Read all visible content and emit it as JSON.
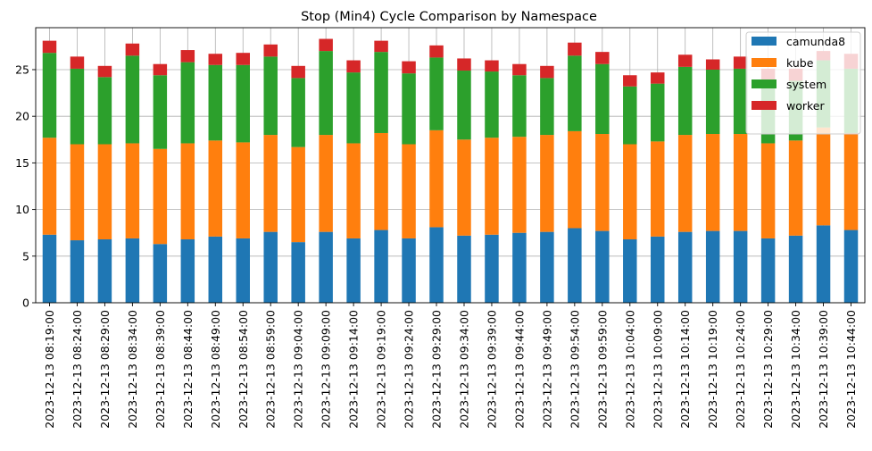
{
  "chart_data": {
    "type": "bar",
    "stacked": true,
    "title": "Stop (Min4) Cycle Comparison by Namespace",
    "xlabel": "",
    "ylabel": "",
    "ylim": [
      0,
      29.5
    ],
    "yticks": [
      0,
      5,
      10,
      15,
      20,
      25
    ],
    "grid": true,
    "legend_position": "top-right",
    "categories": [
      "2023-12-13 08:19:00",
      "2023-12-13 08:24:00",
      "2023-12-13 08:29:00",
      "2023-12-13 08:34:00",
      "2023-12-13 08:39:00",
      "2023-12-13 08:44:00",
      "2023-12-13 08:49:00",
      "2023-12-13 08:54:00",
      "2023-12-13 08:59:00",
      "2023-12-13 09:04:00",
      "2023-12-13 09:09:00",
      "2023-12-13 09:14:00",
      "2023-12-13 09:19:00",
      "2023-12-13 09:24:00",
      "2023-12-13 09:29:00",
      "2023-12-13 09:34:00",
      "2023-12-13 09:39:00",
      "2023-12-13 09:44:00",
      "2023-12-13 09:49:00",
      "2023-12-13 09:54:00",
      "2023-12-13 09:59:00",
      "2023-12-13 10:04:00",
      "2023-12-13 10:09:00",
      "2023-12-13 10:14:00",
      "2023-12-13 10:19:00",
      "2023-12-13 10:24:00",
      "2023-12-13 10:29:00",
      "2023-12-13 10:34:00",
      "2023-12-13 10:39:00",
      "2023-12-13 10:44:00"
    ],
    "series": [
      {
        "name": "camunda8",
        "color": "#1f77b4",
        "values": [
          7.3,
          6.7,
          6.8,
          6.9,
          6.3,
          6.8,
          7.1,
          6.9,
          7.6,
          6.5,
          7.6,
          6.9,
          7.8,
          6.9,
          8.1,
          7.2,
          7.3,
          7.5,
          7.6,
          8.0,
          7.7,
          6.8,
          7.1,
          7.6,
          7.7,
          7.7,
          6.9,
          7.2,
          8.3,
          7.8
        ]
      },
      {
        "name": "kube",
        "color": "#ff7f0e",
        "values": [
          10.4,
          10.3,
          10.2,
          10.2,
          10.2,
          10.3,
          10.3,
          10.3,
          10.4,
          10.2,
          10.4,
          10.2,
          10.4,
          10.1,
          10.4,
          10.3,
          10.4,
          10.3,
          10.4,
          10.4,
          10.4,
          10.2,
          10.2,
          10.4,
          10.4,
          10.4,
          10.2,
          10.2,
          10.5,
          10.4
        ]
      },
      {
        "name": "system",
        "color": "#2ca02c",
        "values": [
          9.1,
          8.1,
          7.2,
          9.4,
          7.9,
          8.7,
          8.1,
          8.3,
          8.4,
          7.4,
          9.0,
          7.6,
          8.7,
          7.6,
          7.8,
          7.4,
          7.1,
          6.6,
          6.1,
          8.1,
          7.5,
          6.2,
          6.2,
          7.3,
          6.9,
          7.0,
          6.7,
          6.4,
          7.2,
          6.9
        ]
      },
      {
        "name": "worker",
        "color": "#d62728",
        "values": [
          1.3,
          1.3,
          1.2,
          1.3,
          1.2,
          1.3,
          1.2,
          1.3,
          1.3,
          1.3,
          1.3,
          1.3,
          1.2,
          1.3,
          1.3,
          1.3,
          1.2,
          1.2,
          1.3,
          1.4,
          1.3,
          1.2,
          1.2,
          1.3,
          1.1,
          1.3,
          1.3,
          1.3,
          1.0,
          1.6
        ]
      }
    ]
  }
}
